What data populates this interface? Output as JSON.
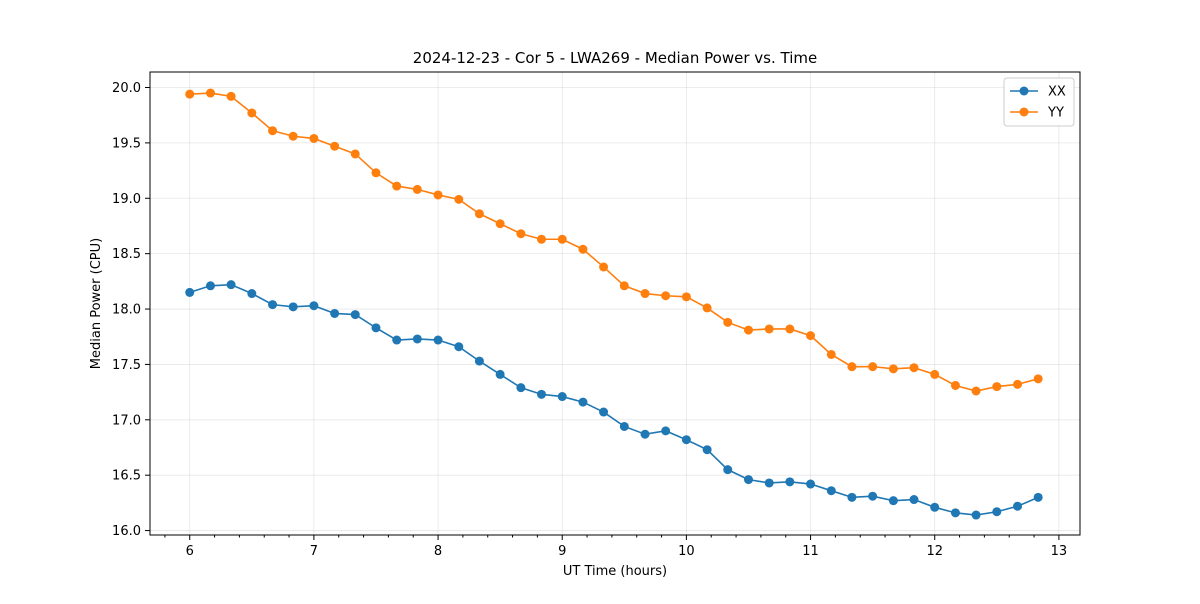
{
  "chart_data": {
    "type": "line",
    "title": "2024-12-23 - Cor 5 - LWA269 - Median Power vs. Time",
    "xlabel": "UT Time (hours)",
    "ylabel": "Median Power (CPU)",
    "xlim": [
      5.68,
      13.17
    ],
    "ylim": [
      15.96,
      20.14
    ],
    "x_ticks": [
      6,
      7,
      8,
      9,
      10,
      11,
      12,
      13
    ],
    "x_minor_step": 0.2,
    "y_ticks": [
      16.0,
      16.5,
      17.0,
      17.5,
      18.0,
      18.5,
      19.0,
      19.5,
      20.0
    ],
    "grid": true,
    "legend_position": "top-right",
    "x": [
      6.0,
      6.167,
      6.333,
      6.5,
      6.667,
      6.833,
      7.0,
      7.167,
      7.333,
      7.5,
      7.667,
      7.833,
      8.0,
      8.167,
      8.333,
      8.5,
      8.667,
      8.833,
      9.0,
      9.167,
      9.333,
      9.5,
      9.667,
      9.833,
      10.0,
      10.167,
      10.333,
      10.5,
      10.667,
      10.833,
      11.0,
      11.167,
      11.333,
      11.5,
      11.667,
      11.833,
      12.0,
      12.167,
      12.333,
      12.5,
      12.667,
      12.833
    ],
    "series": [
      {
        "name": "XX",
        "color": "#1f77b4",
        "values": [
          18.15,
          18.21,
          18.22,
          18.14,
          18.04,
          18.02,
          18.03,
          17.96,
          17.95,
          17.83,
          17.72,
          17.73,
          17.72,
          17.66,
          17.53,
          17.41,
          17.29,
          17.23,
          17.21,
          17.16,
          17.07,
          16.94,
          16.87,
          16.9,
          16.82,
          16.73,
          16.55,
          16.46,
          16.43,
          16.44,
          16.42,
          16.36,
          16.3,
          16.31,
          16.27,
          16.28,
          16.21,
          16.16,
          16.14,
          16.17,
          16.22,
          16.3
        ]
      },
      {
        "name": "YY",
        "color": "#ff7f0e",
        "values": [
          19.94,
          19.95,
          19.92,
          19.77,
          19.61,
          19.56,
          19.54,
          19.47,
          19.4,
          19.23,
          19.11,
          19.08,
          19.03,
          18.99,
          18.86,
          18.77,
          18.68,
          18.63,
          18.63,
          18.54,
          18.38,
          18.21,
          18.14,
          18.12,
          18.11,
          18.01,
          17.88,
          17.81,
          17.82,
          17.82,
          17.76,
          17.59,
          17.48,
          17.48,
          17.46,
          17.47,
          17.41,
          17.31,
          17.26,
          17.3,
          17.32,
          17.37
        ]
      }
    ]
  }
}
